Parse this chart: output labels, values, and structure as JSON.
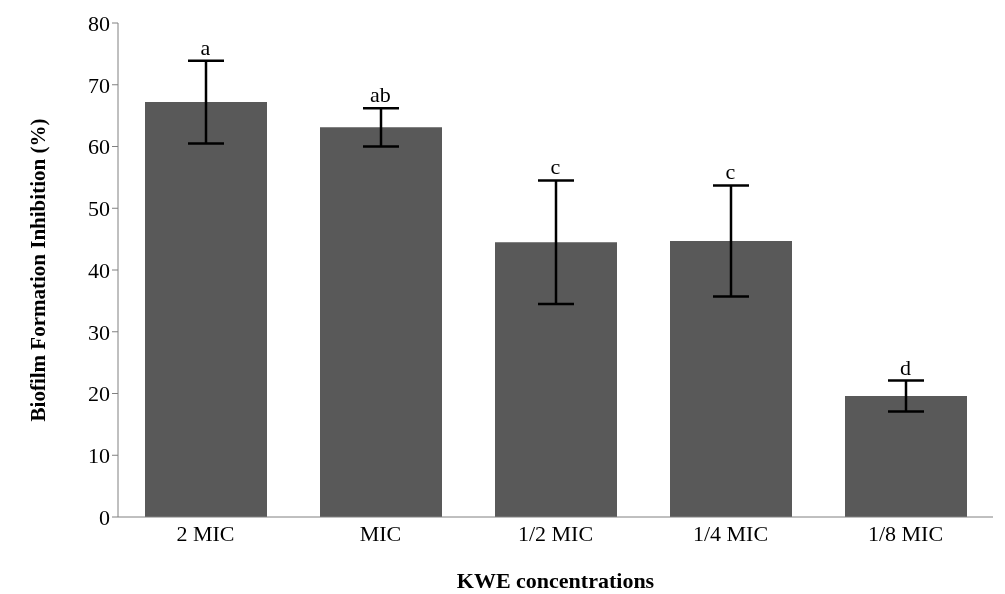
{
  "chart_data": {
    "type": "bar",
    "xlabel": "KWE concentrations",
    "ylabel": "Biofilm Formation Inhibition (%)",
    "categories": [
      "2 MIC",
      "MIC",
      "1/2 MIC",
      "1/4 MIC",
      "1/8 MIC"
    ],
    "values": [
      67.2,
      63.1,
      44.5,
      44.7,
      19.6
    ],
    "errors": [
      6.7,
      3.1,
      10.0,
      9.0,
      2.5
    ],
    "color": "#595959",
    "ylim": [
      0,
      80
    ],
    "yticks": [
      0,
      10,
      20,
      30,
      40,
      50,
      60,
      70,
      80
    ],
    "grid": false,
    "legend": false,
    "annotations": [
      "a",
      "ab",
      "c",
      "c",
      "d"
    ]
  }
}
